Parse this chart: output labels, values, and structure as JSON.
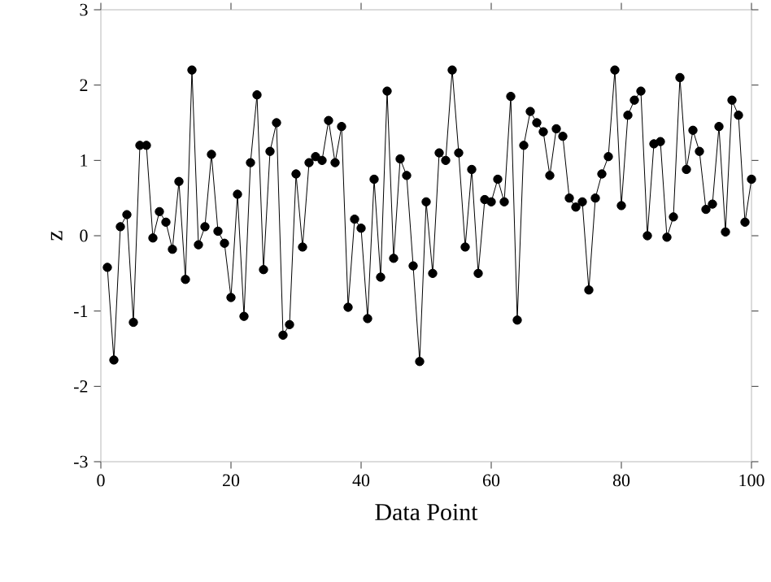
{
  "chart_data": {
    "type": "line",
    "xlabel": "Data Point",
    "ylabel": "z",
    "x": [
      1,
      2,
      3,
      4,
      5,
      6,
      7,
      8,
      9,
      10,
      11,
      12,
      13,
      14,
      15,
      16,
      17,
      18,
      19,
      20,
      21,
      22,
      23,
      24,
      25,
      26,
      27,
      28,
      29,
      30,
      31,
      32,
      33,
      34,
      35,
      36,
      37,
      38,
      39,
      40,
      41,
      42,
      43,
      44,
      45,
      46,
      47,
      48,
      49,
      50,
      51,
      52,
      53,
      54,
      55,
      56,
      57,
      58,
      59,
      60,
      61,
      62,
      63,
      64,
      65,
      66,
      67,
      68,
      69,
      70,
      71,
      72,
      73,
      74,
      75,
      76,
      77,
      78,
      79,
      80,
      81,
      82,
      83,
      84,
      85,
      86,
      87,
      88,
      89,
      90,
      91,
      92,
      93,
      94,
      95,
      96,
      97,
      98,
      99,
      100
    ],
    "values": [
      -0.42,
      -1.65,
      0.12,
      0.28,
      -1.15,
      1.2,
      1.2,
      -0.03,
      0.32,
      0.18,
      -0.18,
      0.72,
      -0.58,
      2.2,
      -0.12,
      0.12,
      1.08,
      0.06,
      -0.1,
      -0.82,
      0.55,
      -1.07,
      0.97,
      1.87,
      -0.45,
      1.12,
      1.5,
      -1.32,
      -1.18,
      0.82,
      -0.15,
      0.97,
      1.05,
      1.0,
      1.53,
      0.97,
      1.45,
      -0.95,
      0.22,
      0.1,
      -1.1,
      0.75,
      -0.55,
      1.92,
      -0.3,
      1.02,
      0.8,
      -0.4,
      -1.67,
      0.45,
      -0.5,
      1.1,
      1.0,
      2.2,
      1.1,
      -0.15,
      0.88,
      -0.5,
      0.48,
      0.45,
      0.75,
      0.45,
      1.85,
      -1.12,
      1.2,
      1.65,
      1.5,
      1.38,
      0.8,
      1.42,
      1.32,
      0.5,
      0.38,
      0.45,
      -0.72,
      0.5,
      0.82,
      1.05,
      2.2,
      0.4,
      1.6,
      1.8,
      1.92,
      0.0,
      1.22,
      1.25,
      -0.02,
      0.25,
      2.1,
      0.88,
      1.4,
      1.12,
      0.35,
      0.42,
      1.45,
      0.05,
      1.8,
      1.6,
      0.18,
      0.75
    ],
    "color": "#000000",
    "marker": "circle",
    "line_style": "solid",
    "grid": false,
    "xlim": [
      0,
      100
    ],
    "xticks": [
      0,
      20,
      40,
      60,
      80,
      100
    ],
    "ylim": [
      -3,
      3
    ],
    "yticks": [
      -3,
      -2,
      -1,
      0,
      1,
      2,
      3
    ]
  }
}
